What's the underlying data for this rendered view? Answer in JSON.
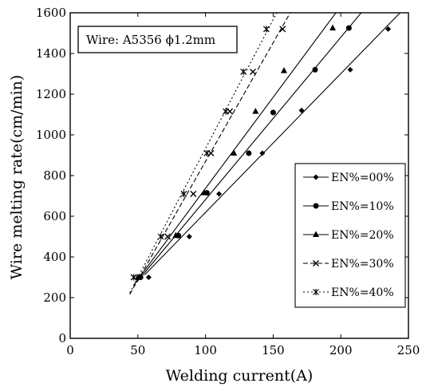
{
  "chart_data": {
    "type": "line",
    "annotation": "Wire: A5356 ϕ1.2mm",
    "xlabel": "Welding current(A)",
    "ylabel": "Wire melting rate(cm/min)",
    "xlim": [
      0,
      250
    ],
    "ylim": [
      0,
      1600
    ],
    "xticks": [
      "0",
      "50",
      "100",
      "150",
      "200",
      "250"
    ],
    "yticks": [
      "0",
      "200",
      "400",
      "600",
      "800",
      "1000",
      "1200",
      "1400",
      "1600"
    ],
    "grid": false,
    "legend_position": "lower-right",
    "series": [
      {
        "name": "EN%=00%",
        "marker": "diamond",
        "dash": "solid",
        "points": [
          [
            58,
            300
          ],
          [
            88,
            500
          ],
          [
            110,
            710
          ],
          [
            132,
            910
          ],
          [
            142,
            910
          ],
          [
            171,
            1120
          ],
          [
            207,
            1320
          ],
          [
            235,
            1520
          ]
        ]
      },
      {
        "name": "EN%=10%",
        "marker": "circle",
        "dash": "solid",
        "points": [
          [
            52,
            300
          ],
          [
            80,
            505
          ],
          [
            101,
            715
          ],
          [
            132,
            910
          ],
          [
            150,
            1110
          ],
          [
            181,
            1320
          ],
          [
            206,
            1525
          ]
        ]
      },
      {
        "name": "EN%=20%",
        "marker": "triangle",
        "dash": "solid",
        "points": [
          [
            50,
            300
          ],
          [
            78,
            505
          ],
          [
            99,
            715
          ],
          [
            121,
            910
          ],
          [
            137,
            1115
          ],
          [
            158,
            1315
          ],
          [
            194,
            1525
          ]
        ]
      },
      {
        "name": "EN%=30%",
        "marker": "x",
        "dash": "dashed",
        "points": [
          [
            47,
            300
          ],
          [
            72,
            500
          ],
          [
            91,
            710
          ],
          [
            104,
            910
          ],
          [
            118,
            1115
          ],
          [
            135,
            1310
          ],
          [
            157,
            1520
          ]
        ]
      },
      {
        "name": "EN%=40%",
        "marker": "star",
        "dash": "dotted",
        "points": [
          [
            47,
            300
          ],
          [
            67,
            500
          ],
          [
            84,
            710
          ],
          [
            101,
            910
          ],
          [
            115,
            1115
          ],
          [
            128,
            1310
          ],
          [
            145,
            1520
          ]
        ]
      }
    ]
  }
}
